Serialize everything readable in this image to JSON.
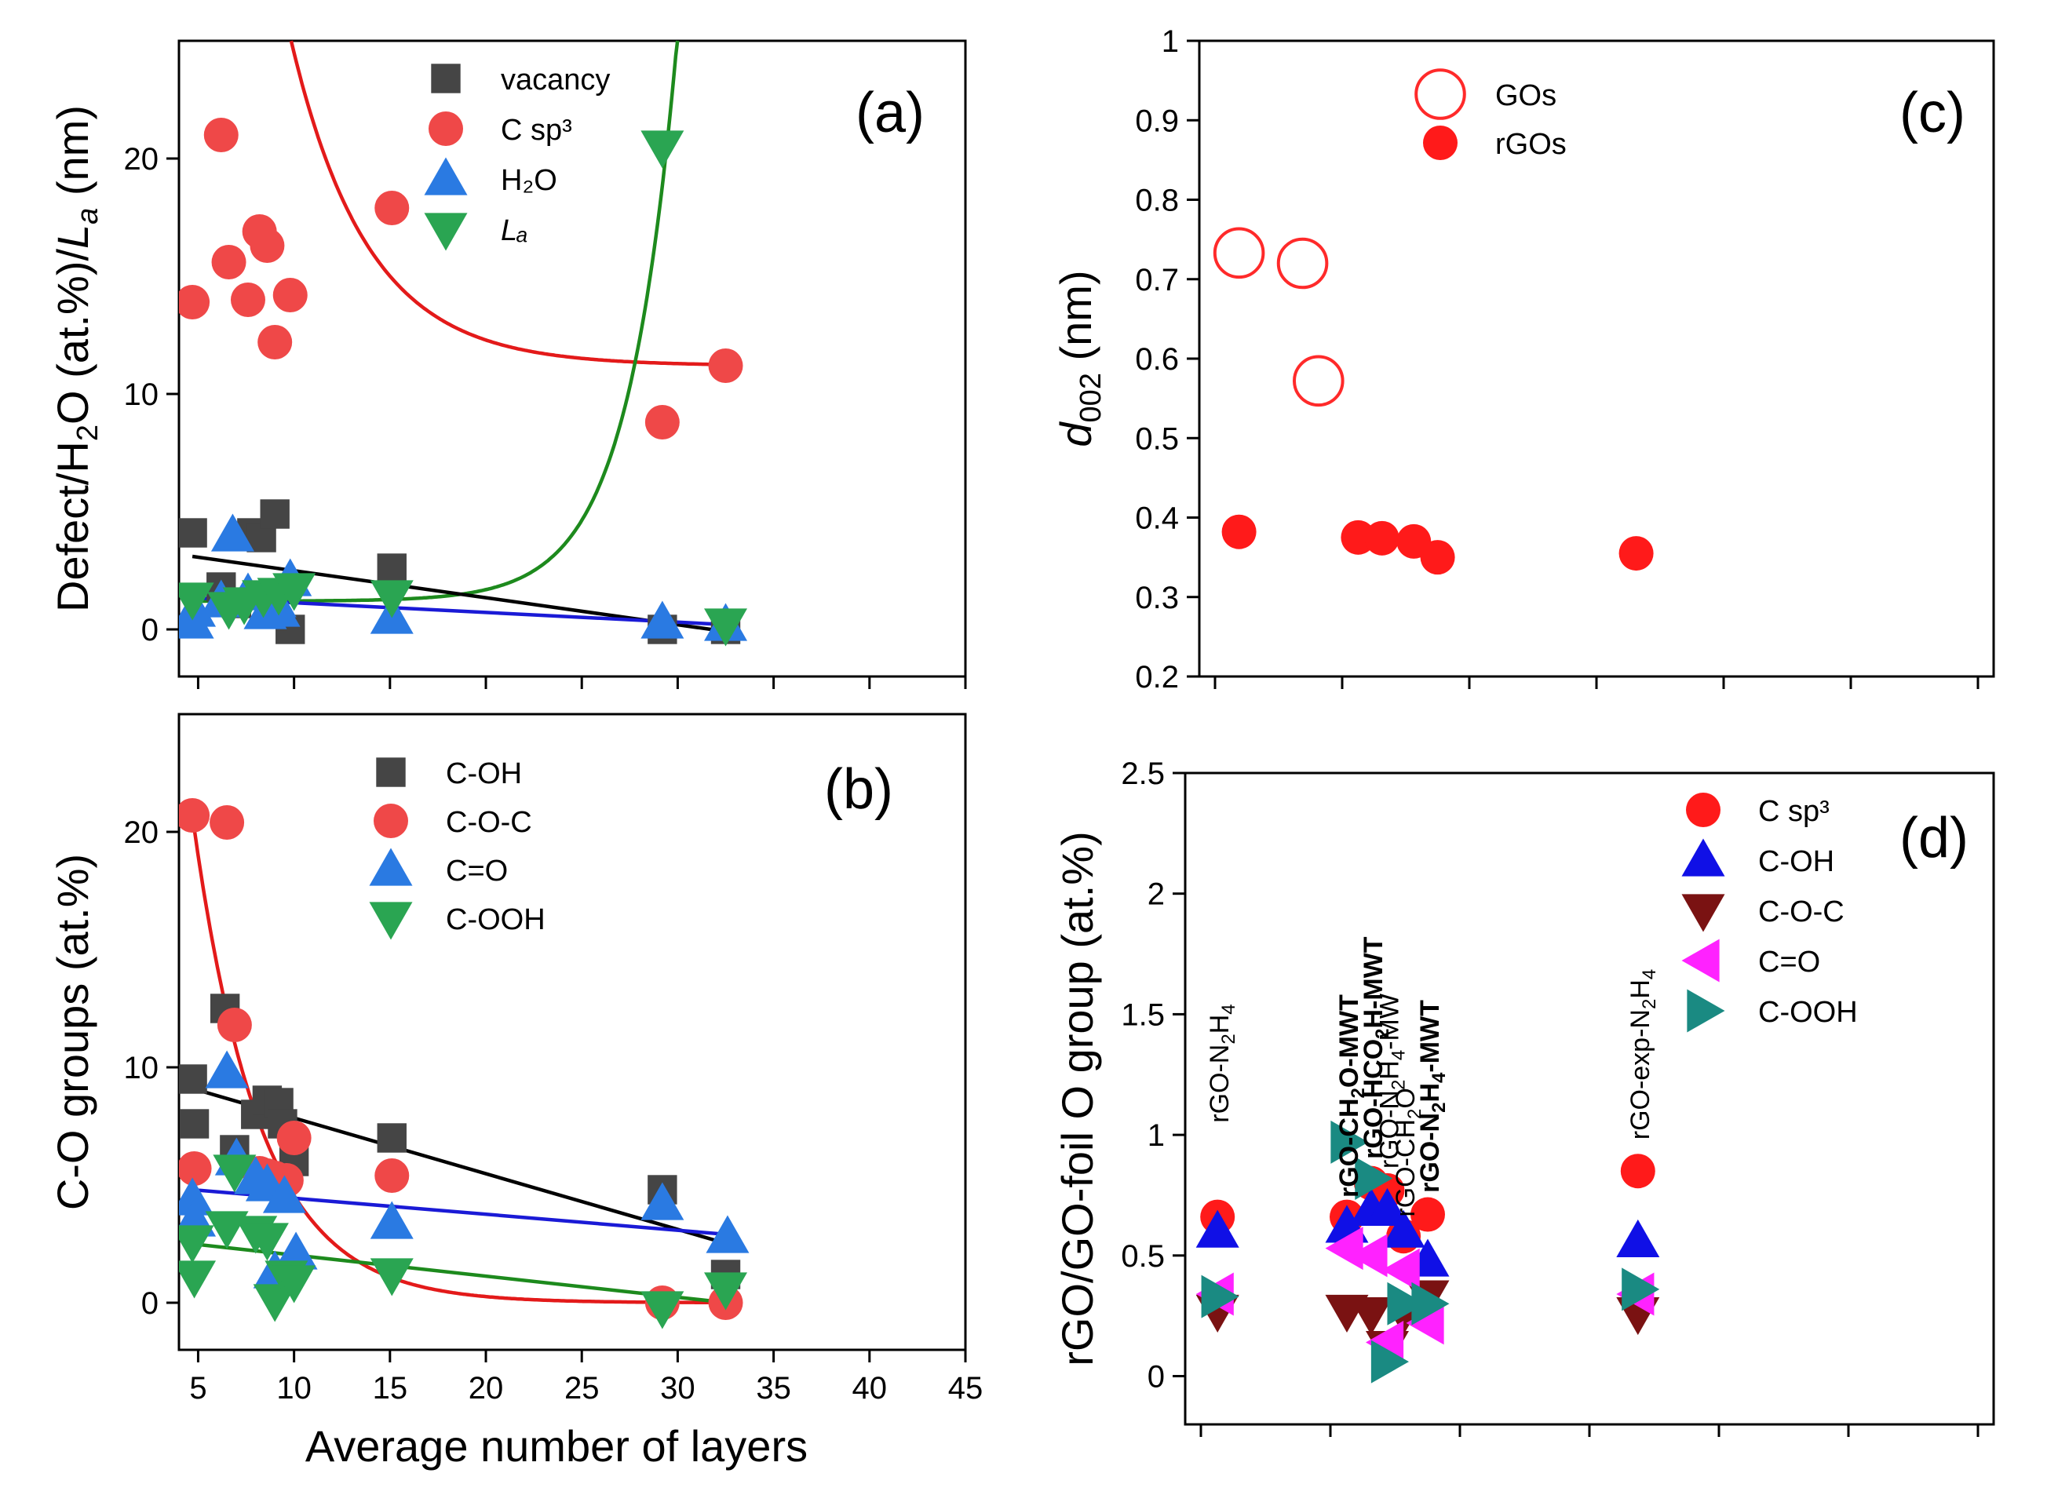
{
  "chart_data": [
    {
      "id": "a",
      "panel_label": "(a)",
      "type": "scatter",
      "ylabel": "Defect/H₂O (at.%)/Lₐ (nm)",
      "ylabel_parts": [
        "Defect/H",
        "2",
        "O (at.%)/",
        "L",
        "a",
        " (nm)"
      ],
      "xlim": [
        4,
        45
      ],
      "ylim": [
        -2,
        25
      ],
      "yticks": [
        0,
        10,
        20
      ],
      "legend": [
        "vacancy",
        "C sp³",
        "H₂O",
        "Lₐ"
      ],
      "series": [
        {
          "name": "vacancy",
          "color": "#454545",
          "marker": "square",
          "x": [
            4.7,
            6.2,
            7.0,
            7.8,
            8.3,
            9.0,
            9.8,
            15.1,
            29.2,
            32.5
          ],
          "y": [
            4.1,
            1.8,
            1.1,
            4.1,
            3.9,
            4.9,
            0.0,
            2.6,
            0.0,
            0.0
          ]
        },
        {
          "name": "C sp³",
          "color": "#ef4848",
          "marker": "circle",
          "x": [
            4.7,
            6.2,
            6.6,
            7.6,
            8.2,
            8.6,
            9.0,
            9.8,
            15.1,
            29.2,
            32.5
          ],
          "y": [
            13.9,
            21.0,
            15.6,
            14.0,
            16.9,
            16.3,
            12.2,
            14.2,
            17.9,
            8.8,
            11.2
          ]
        },
        {
          "name": "H₂O",
          "color": "#2a7ae2",
          "marker": "triangle-up",
          "x": [
            4.7,
            4.8,
            6.2,
            6.8,
            7.6,
            8.5,
            9.0,
            9.2,
            9.8,
            15.1,
            29.2,
            32.5
          ],
          "y": [
            0.3,
            0.8,
            1.2,
            4.0,
            1.5,
            0.7,
            1.2,
            0.8,
            2.1,
            0.5,
            0.3,
            0.2
          ]
        },
        {
          "name": "Lₐ",
          "color": "#2aa552",
          "marker": "triangle-down",
          "x": [
            4.7,
            6.6,
            7.4,
            8.4,
            9.2,
            10.0,
            15.1,
            29.2,
            32.5
          ],
          "y": [
            1.3,
            0.9,
            1.1,
            1.4,
            1.5,
            1.7,
            1.4,
            20.5,
            0.2
          ]
        }
      ],
      "fits": [
        {
          "name": "C sp³ fit",
          "color": "#e31a1a",
          "kind": "exp-decay",
          "y0": 11.2,
          "A": 50.0,
          "t": 4.0,
          "x0": 4.7,
          "x1": 32.8
        },
        {
          "name": "Lₐ fit",
          "color": "#1d8a1d",
          "kind": "exp-growth",
          "y0": 1.2,
          "A": 0.0002,
          "k": 0.39,
          "x0": 4.7,
          "x1": 32.8
        },
        {
          "name": "vacancy fit",
          "color": "#000000",
          "kind": "linear",
          "points": [
            [
              4.7,
              3.1
            ],
            [
              32.6,
              -0.1
            ]
          ]
        },
        {
          "name": "H₂O fit",
          "color": "#1a1ad6",
          "kind": "linear",
          "points": [
            [
              4.7,
              1.35
            ],
            [
              32.6,
              0.2
            ]
          ]
        }
      ]
    },
    {
      "id": "b",
      "panel_label": "(b)",
      "type": "scatter",
      "xlabel": "Average number of layers",
      "ylabel": "C-O groups (at.%)",
      "xlim": [
        4,
        45
      ],
      "ylim": [
        -2,
        25
      ],
      "xticks": [
        5,
        10,
        15,
        20,
        25,
        30,
        35,
        40,
        45
      ],
      "yticks": [
        0,
        10,
        20
      ],
      "legend": [
        "C-OH",
        "C-O-C",
        "C=O",
        "C-OOH"
      ],
      "series": [
        {
          "name": "C-OH",
          "color": "#454545",
          "marker": "square",
          "x": [
            4.7,
            4.8,
            6.4,
            6.9,
            8.0,
            8.6,
            9.2,
            9.4,
            10.0,
            15.1,
            29.2,
            32.5
          ],
          "y": [
            9.5,
            7.6,
            12.5,
            6.5,
            8.0,
            8.6,
            8.5,
            7.6,
            6.0,
            7.0,
            4.8,
            1.2
          ]
        },
        {
          "name": "C-O-C",
          "color": "#ef4848",
          "marker": "circle",
          "x": [
            4.7,
            4.8,
            6.5,
            6.9,
            8.2,
            8.6,
            9.0,
            9.6,
            10.0,
            15.1,
            29.2,
            32.5
          ],
          "y": [
            20.7,
            5.7,
            20.4,
            11.8,
            5.5,
            5.4,
            5.3,
            5.2,
            7.0,
            5.4,
            0.0,
            0.0
          ]
        },
        {
          "name": "C=O",
          "color": "#2a7ae2",
          "marker": "triangle-up",
          "x": [
            4.7,
            4.8,
            6.5,
            7.0,
            8.0,
            8.6,
            9.0,
            9.5,
            10.1,
            15.1,
            29.2,
            32.6
          ],
          "y": [
            4.4,
            3.5,
            9.8,
            6.1,
            5.3,
            5.0,
            1.3,
            4.5,
            2.1,
            3.4,
            4.2,
            2.8
          ]
        },
        {
          "name": "C-OOH",
          "color": "#2aa552",
          "marker": "triangle-down",
          "x": [
            4.7,
            4.8,
            6.5,
            6.9,
            8.0,
            8.6,
            9.0,
            9.6,
            10.0,
            15.1,
            29.2,
            32.5
          ],
          "y": [
            2.6,
            1.1,
            3.2,
            5.6,
            3.0,
            2.7,
            0.1,
            1.1,
            0.9,
            1.2,
            -0.2,
            0.6
          ]
        }
      ],
      "fits": [
        {
          "name": "C-O-C fit",
          "color": "#e31a1a",
          "kind": "exp-decay",
          "y0": 0.0,
          "A": 20.7,
          "t": 3.5,
          "x0": 4.7,
          "x1": 32.6
        },
        {
          "name": "C-OH fit",
          "color": "#000000",
          "kind": "linear",
          "points": [
            [
              4.7,
              9.1
            ],
            [
              32.6,
              2.5
            ]
          ]
        },
        {
          "name": "C=O fit",
          "color": "#1a1ad6",
          "kind": "linear",
          "points": [
            [
              4.7,
              4.8
            ],
            [
              32.6,
              2.9
            ]
          ]
        },
        {
          "name": "C-OOH fit",
          "color": "#1d8a1d",
          "kind": "linear",
          "points": [
            [
              4.7,
              2.5
            ],
            [
              32.6,
              0.0
            ]
          ]
        }
      ]
    },
    {
      "id": "c",
      "panel_label": "(c)",
      "type": "scatter",
      "ylabel": "d₀₀₂ (nm)",
      "ylabel_parts": [
        "d",
        "002",
        " (nm)"
      ],
      "xlim": [
        0,
        10
      ],
      "ylim": [
        0.2,
        1.0
      ],
      "yticks": [
        0.2,
        0.3,
        0.4,
        0.5,
        0.6,
        0.7,
        0.8,
        0.9,
        1.0
      ],
      "ytick_labels": [
        "0.2",
        "0.3",
        "0.4",
        "0.5",
        "0.6",
        "0.7",
        "0.8",
        "0.9",
        "1"
      ],
      "legend": [
        "GOs",
        "rGOs"
      ],
      "series": [
        {
          "name": "GOs",
          "color": "#ff2a2a",
          "marker": "open-circle",
          "x": [
            0.5,
            1.3,
            1.5
          ],
          "y": [
            0.733,
            0.72,
            0.572
          ]
        },
        {
          "name": "rGOs",
          "color": "#ff1a1a",
          "marker": "circle",
          "x": [
            0.5,
            2.0,
            2.3,
            2.7,
            3.0,
            5.5
          ],
          "y": [
            0.382,
            0.375,
            0.374,
            0.37,
            0.35,
            0.355
          ]
        }
      ]
    },
    {
      "id": "d",
      "panel_label": "(d)",
      "type": "scatter",
      "ylabel": "rGO/GO-foil O group (at.%)",
      "xlim": [
        0,
        10
      ],
      "ylim": [
        -0.2,
        2.5
      ],
      "yticks": [
        0,
        0.5,
        1.0,
        1.5,
        2.0,
        2.5
      ],
      "ytick_labels": [
        "0",
        "0.5",
        "1",
        "1.5",
        "2",
        "2.5"
      ],
      "legend": [
        "C sp³",
        "C-OH",
        "C-O-C",
        "C=O",
        "C-OOH"
      ],
      "samples": [
        {
          "label": "rGO-N₂H₄",
          "parts": [
            "rGO-N",
            "2",
            "H",
            "4"
          ],
          "bold": false
        },
        {
          "label": "rGO-CH₂O-MWT",
          "parts": [
            "rGO-CH",
            "2",
            "O-MWT"
          ],
          "bold": true
        },
        {
          "label": "rGO-HCO₂H-MWT",
          "parts": [
            "rGO-HCO",
            "2",
            "H-MWT"
          ],
          "bold": true
        },
        {
          "label": "rGO-N₂H₄-MW",
          "parts": [
            "rGO-N",
            "2",
            "H",
            "4",
            "-MW"
          ],
          "bold": false
        },
        {
          "label": "rGO-CH₂O",
          "parts": [
            "rGO-CH",
            "2",
            "O"
          ],
          "bold": false
        },
        {
          "label": "rGO-N₂H₄-MWT",
          "parts": [
            "rGO-N",
            "2",
            "H",
            "4",
            "-MWT"
          ],
          "bold": true
        },
        {
          "label": "rGO-exp-N₂H₄",
          "parts": [
            "rGO-exp-N",
            "2",
            "H",
            "4"
          ],
          "bold": false
        }
      ],
      "series": [
        {
          "name": "C sp³",
          "color": "#ff1a1a",
          "marker": "circle",
          "x": [
            0.4,
            2.0,
            2.3,
            2.5,
            2.7,
            3.0,
            5.6
          ],
          "y": [
            0.66,
            0.66,
            0.8,
            0.77,
            0.58,
            0.67,
            0.85
          ]
        },
        {
          "name": "C-OH",
          "color": "#1010e6",
          "marker": "triangle-up",
          "x": [
            0.4,
            2.0,
            2.3,
            2.5,
            2.7,
            3.0,
            5.6
          ],
          "y": [
            0.6,
            0.62,
            0.69,
            0.69,
            0.6,
            0.48,
            0.56
          ]
        },
        {
          "name": "C-O-C",
          "color": "#7a1212",
          "marker": "triangle-down",
          "x": [
            0.4,
            2.0,
            2.3,
            2.5,
            2.7,
            3.0,
            5.6
          ],
          "y": [
            0.27,
            0.27,
            0.26,
            0.12,
            0.26,
            0.33,
            0.26
          ]
        },
        {
          "name": "C=O",
          "color": "#ff22ff",
          "marker": "triangle-left",
          "x": [
            0.4,
            2.0,
            2.3,
            2.5,
            2.7,
            3.0,
            5.6
          ],
          "y": [
            0.34,
            0.53,
            0.5,
            0.14,
            0.44,
            0.22,
            0.34
          ]
        },
        {
          "name": "C-OOH",
          "color": "#1a8a82",
          "marker": "triangle-right",
          "x": [
            0.4,
            2.0,
            2.3,
            2.5,
            2.7,
            3.0,
            5.6
          ],
          "y": [
            0.33,
            0.97,
            0.82,
            0.06,
            0.3,
            0.3,
            0.36
          ]
        }
      ]
    }
  ]
}
